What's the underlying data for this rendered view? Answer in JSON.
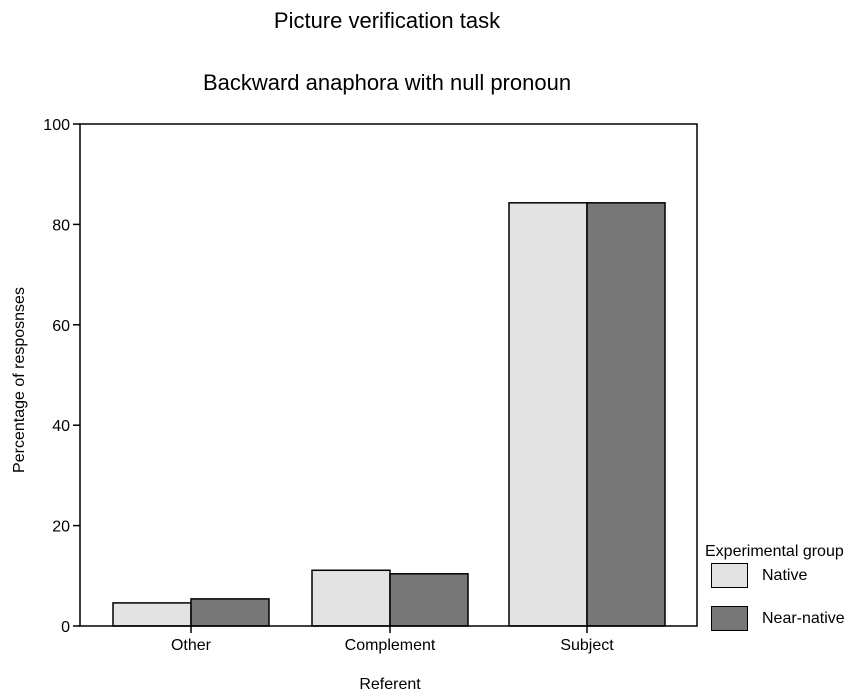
{
  "chart_data": {
    "type": "bar",
    "title": "Picture verification task",
    "subtitle": "Backward anaphora with null pronoun",
    "xlabel": "Referent",
    "ylabel": "Percentage of resposnses",
    "categories": [
      "Other",
      "Complement",
      "Subject"
    ],
    "series": [
      {
        "name": "Native",
        "values": [
          4.6,
          11.1,
          84.3
        ],
        "color": "#e3e3e3"
      },
      {
        "name": "Near-native",
        "values": [
          5.4,
          10.4,
          84.3
        ],
        "color": "#777777"
      }
    ],
    "ylim": [
      0,
      100
    ],
    "yticks": [
      0,
      20,
      40,
      60,
      80,
      100
    ],
    "grid": false,
    "legend": {
      "title": "Experimental group",
      "position": "right"
    }
  }
}
